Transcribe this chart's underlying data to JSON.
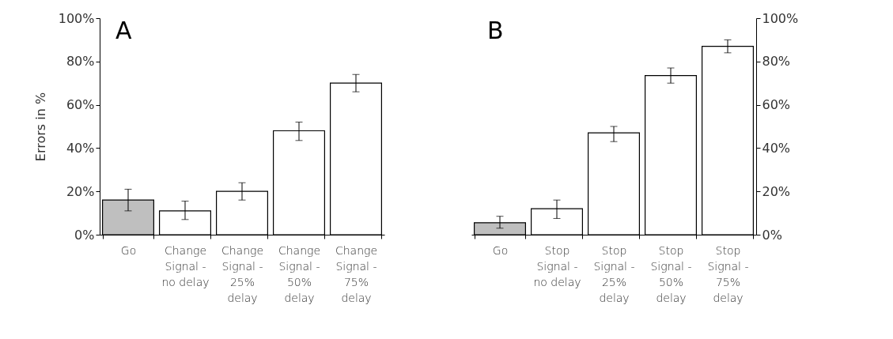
{
  "chart_data": [
    {
      "type": "bar",
      "title": "A",
      "ylabel": "Errors in %",
      "categories": [
        "Go",
        "Change Signal - no delay",
        "Change Signal - 25% delay",
        "Change Signal - 50% delay",
        "Change Signal - 75% delay"
      ],
      "colors": [
        "#bfbfbf",
        "#ffffff",
        "#ffffff",
        "#ffffff",
        "#ffffff"
      ],
      "series": [
        {
          "values": [
            16,
            11,
            20,
            48,
            70
          ],
          "errors": [
            [
              11,
              21
            ],
            [
              7,
              15.5
            ],
            [
              16,
              24
            ],
            [
              43.5,
              52
            ],
            [
              66,
              74
            ]
          ]
        }
      ],
      "ylim": [
        0,
        100
      ],
      "yticks": [
        {
          "value": 0,
          "label": "0%"
        },
        {
          "value": 20,
          "label": "20%"
        },
        {
          "value": 40,
          "label": "40%"
        },
        {
          "value": 60,
          "label": "60%"
        },
        {
          "value": 80,
          "label": "80%"
        },
        {
          "value": 100,
          "label": "100%"
        }
      ],
      "grid": false
    },
    {
      "type": "bar",
      "title": "B",
      "categories": [
        "Go",
        "Stop Signal - no delay",
        "Stop Signal - 25% delay",
        "Stop Signal - 50% delay",
        "Stop Signal - 75% delay"
      ],
      "colors": [
        "#bfbfbf",
        "#ffffff",
        "#ffffff",
        "#ffffff",
        "#ffffff"
      ],
      "series": [
        {
          "axis": "y2",
          "values": [
            5.5,
            12,
            47,
            73.5,
            87
          ],
          "errors": [
            [
              3,
              8.5
            ],
            [
              7.5,
              16
            ],
            [
              43,
              50
            ],
            [
              70,
              77
            ],
            [
              84,
              90
            ]
          ]
        }
      ],
      "y2lim": [
        0,
        100
      ],
      "y2ticks": [
        {
          "value": 0,
          "label": "0%"
        },
        {
          "value": 20,
          "label": "20%"
        },
        {
          "value": 40,
          "label": "40%"
        },
        {
          "value": 60,
          "label": "60%"
        },
        {
          "value": 80,
          "label": "80%"
        },
        {
          "value": 100,
          "label": "100%"
        }
      ],
      "grid": false
    }
  ]
}
